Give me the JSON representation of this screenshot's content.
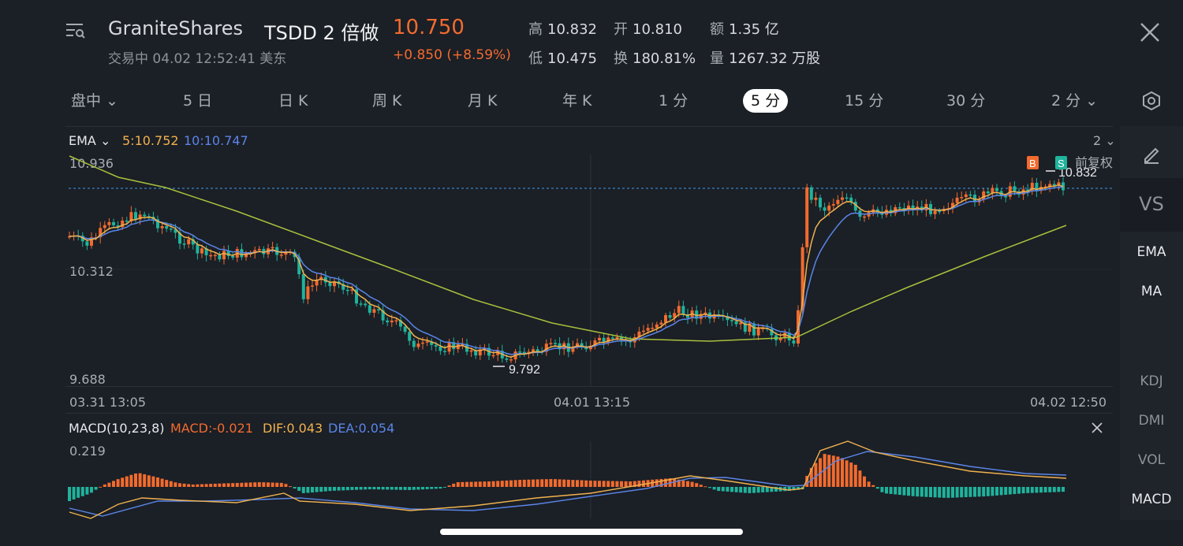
{
  "header": {
    "company": "GraniteShares",
    "name": "TSDD 2 倍做",
    "price": "10.750",
    "status": "交易中 04.02 12:52:41 美东",
    "change": "+0.850 (+8.59%)",
    "stats": [
      {
        "k": "高",
        "v": "10.832"
      },
      {
        "k": "开",
        "v": "10.810"
      },
      {
        "k": "额",
        "v": "1.35 亿"
      },
      {
        "k": "低",
        "v": "10.475"
      },
      {
        "k": "换",
        "v": "180.81%"
      },
      {
        "k": "量",
        "v": "1267.32 万股"
      }
    ]
  },
  "tabs": [
    "盘中",
    "5 日",
    "日 K",
    "周 K",
    "月 K",
    "年 K",
    "1 分",
    "5 分",
    "15 分",
    "30 分",
    "2 分"
  ],
  "active_tab": "5 分",
  "main_chart": {
    "indicator": "EMA",
    "ema5_label": "5:10.752",
    "ema10_label": "10:10.747",
    "period_selector": "2",
    "y_top": "10.936",
    "y_mid": "10.312",
    "y_bottom": "9.688",
    "x_labels": [
      "03.31 13:05",
      "04.01 13:15",
      "04.02 12:50"
    ],
    "high_marker": "10.832",
    "low_marker": "9.792",
    "buy_tag": "B",
    "sell_tag": "S",
    "adjust_label": "前复权"
  },
  "macd": {
    "title": "MACD(10,23,8)",
    "macd_label": "MACD:-0.021",
    "dif_label": "DIF:0.043",
    "dea_label": "DEA:0.054",
    "y_top": "0.219"
  },
  "side_panel": {
    "items": [
      "EMA",
      "MA",
      "KDJ",
      "DMI",
      "VOL",
      "MACD"
    ],
    "vs_label": "VS"
  },
  "colors": {
    "up": "#f26b2e",
    "down": "#1fb39c",
    "ema5": "#f0b24e",
    "ema10": "#5a86e8",
    "ema_long": "#a7c13c",
    "bg": "#1b1f26"
  },
  "chart_data": {
    "type": "candlestick",
    "y_range": [
      9.688,
      10.936
    ],
    "x": [
      "03.31 13:05",
      "04.01 13:15",
      "04.02 12:50"
    ],
    "high": 10.832,
    "low": 9.792,
    "series": [
      {
        "name": "EMA 5",
        "last": 10.752
      },
      {
        "name": "EMA 10",
        "last": 10.747
      }
    ]
  }
}
